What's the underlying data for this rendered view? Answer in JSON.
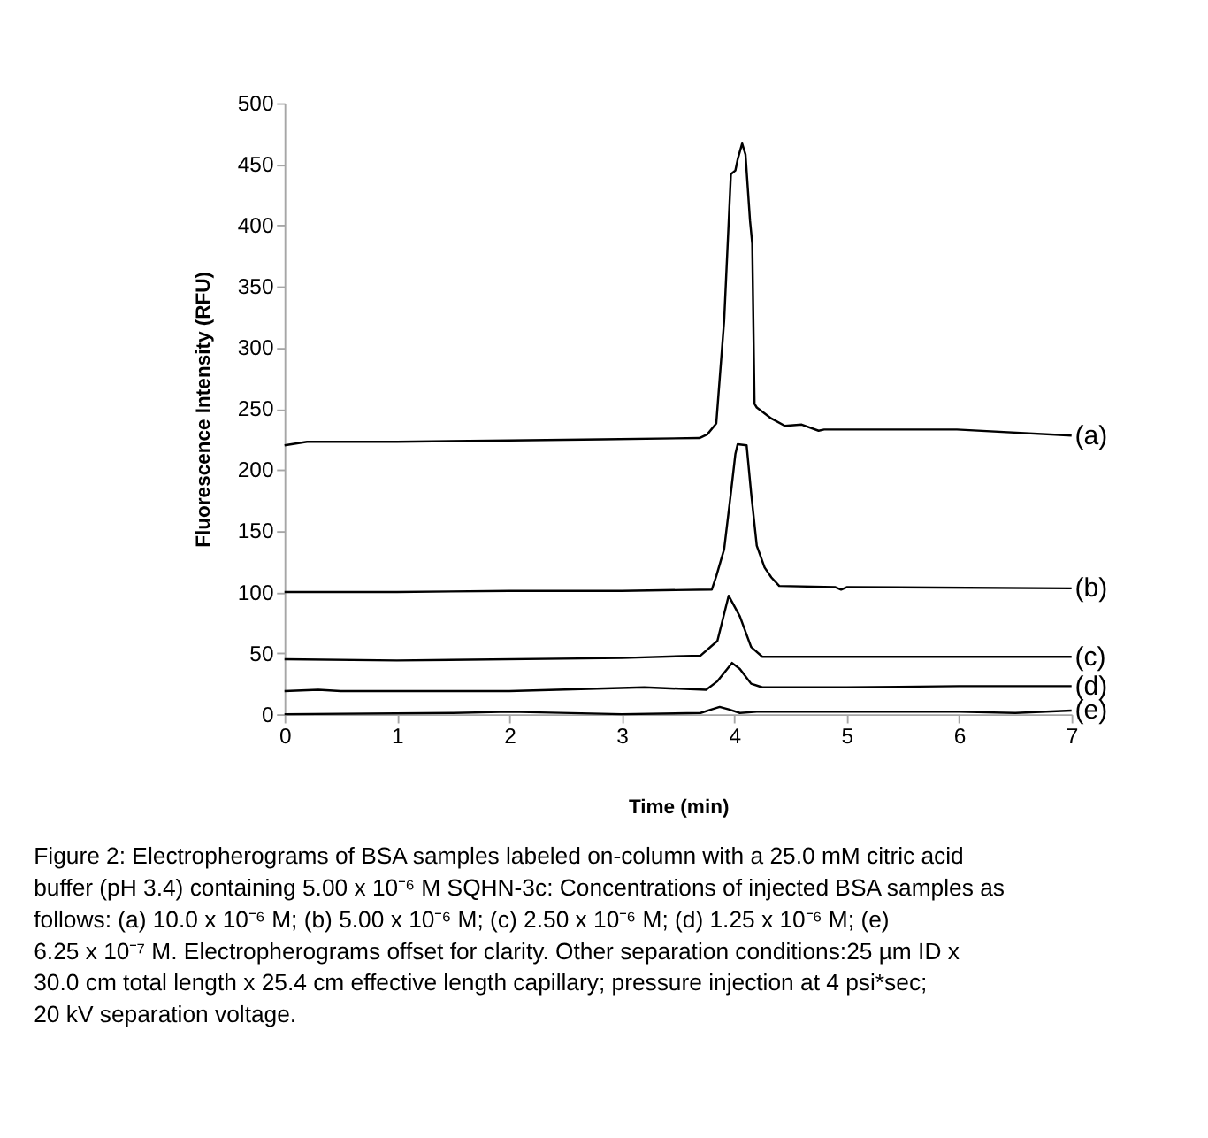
{
  "chart_data": {
    "type": "line",
    "xlabel": "Time (min)",
    "ylabel": "Fluorescence Intensity (RFU)",
    "xlim": [
      0,
      7
    ],
    "xticks": [
      0,
      1,
      2,
      3,
      4,
      5,
      6,
      7
    ],
    "ylim": [
      0,
      500
    ],
    "yticks": [
      0,
      50,
      100,
      150,
      200,
      250,
      300,
      350,
      400,
      450,
      500
    ],
    "grid": false,
    "legend": false,
    "line_style": "solid",
    "series": [
      {
        "name": "(a)",
        "color": "#000000",
        "x": [
          0,
          0.2,
          1,
          2,
          2.82,
          3.69,
          3.76,
          3.84,
          3.91,
          3.97,
          4.01,
          4.03,
          4.07,
          4.1,
          4.14,
          4.16,
          4.18,
          4.2,
          4.33,
          4.45,
          4.6,
          4.75,
          4.8,
          5.98,
          7
        ],
        "values": [
          220,
          223,
          223,
          224,
          225,
          226,
          229,
          238,
          322,
          442,
          445,
          454,
          467,
          458,
          404,
          385,
          254,
          251,
          242,
          236,
          237,
          232,
          233,
          233,
          228
        ]
      },
      {
        "name": "(b)",
        "color": "#000000",
        "x": [
          0,
          1,
          2,
          3,
          3.8,
          3.84,
          3.91,
          3.97,
          4.01,
          4.03,
          4.11,
          4.15,
          4.2,
          4.27,
          4.33,
          4.4,
          4.9,
          4.95,
          5.0,
          7
        ],
        "values": [
          100,
          100,
          101,
          101,
          102,
          113,
          135,
          181,
          213,
          221,
          220,
          181,
          138,
          120,
          112,
          105,
          104,
          102,
          104,
          103
        ]
      },
      {
        "name": "(c)",
        "color": "#000000",
        "x": [
          0,
          1,
          3,
          3.7,
          3.85,
          3.95,
          4.05,
          4.15,
          4.25,
          7
        ],
        "values": [
          45,
          44,
          46,
          48,
          60,
          97,
          80,
          55,
          47,
          47
        ]
      },
      {
        "name": "(d)",
        "color": "#000000",
        "x": [
          0,
          0.3,
          0.5,
          2,
          3.2,
          3.75,
          3.85,
          3.98,
          4.05,
          4.15,
          4.25,
          5,
          6,
          7
        ],
        "values": [
          19,
          20,
          19,
          19,
          22,
          20,
          27,
          42,
          37,
          25,
          22,
          22,
          23,
          23
        ]
      },
      {
        "name": "(e)",
        "color": "#000000",
        "x": [
          0,
          1.5,
          2,
          3,
          3.7,
          3.8,
          3.87,
          3.95,
          4.05,
          4.2,
          6,
          6.5,
          7
        ],
        "values": [
          0,
          1,
          2,
          0,
          1,
          4,
          6,
          4,
          1,
          2,
          2,
          1,
          3
        ]
      }
    ],
    "annotations": [
      "Figure 2: Electropherograms of BSA samples labeled on-column with a 25.0 mM citric acid buffer (pH 3.4) containing 5.00 x 10⁻⁶ M SQHN-3c: Concentrations of injected BSA samples as follows: (a) 10.0 x 10⁻⁶ M; (b) 5.00 x 10⁻⁶ M; (c) 2.50 x 10⁻⁶ M; (d) 1.25 x 10⁻⁶ M; (e) 6.25 x 10⁻⁷ M. Electropherograms offset for clarity. Other separation conditions:25 µm ID x 30.0 cm total length x 25.4 cm effective length capillary; pressure injection at 4 psi*sec; 20 kV separation voltage."
    ]
  }
}
